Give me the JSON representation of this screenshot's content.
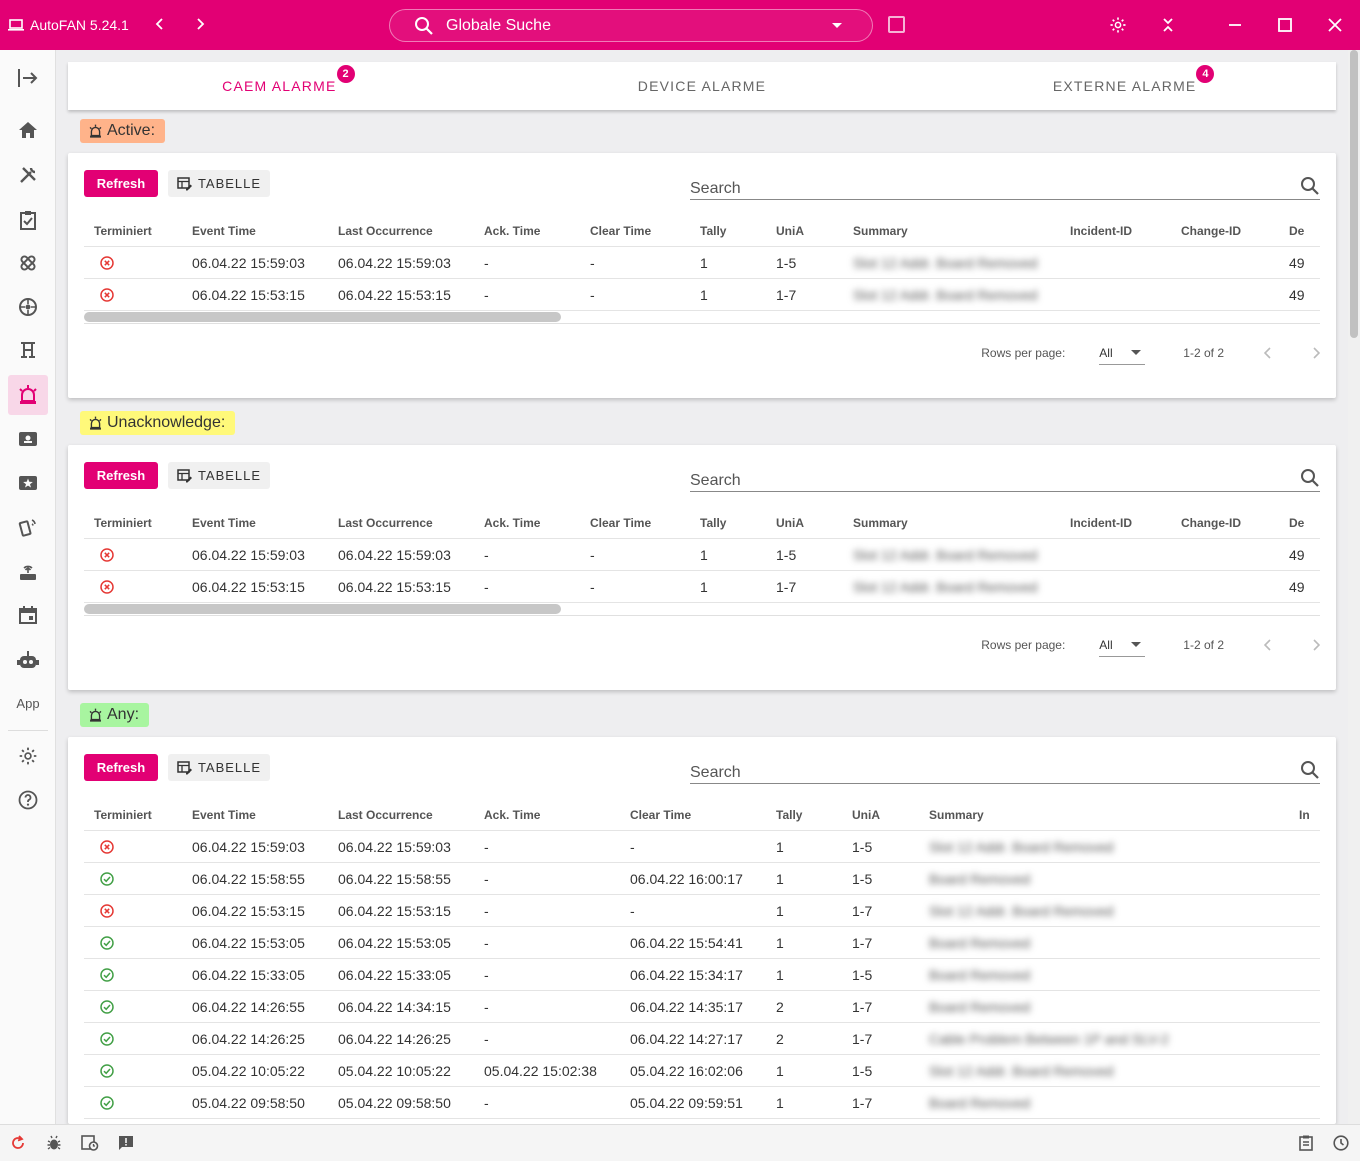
{
  "app": {
    "title": "AutoFAN 5.24.1"
  },
  "global_search": {
    "placeholder": "Globale Suche"
  },
  "tabs": [
    {
      "label": "CAEM ALARME",
      "badge": "2",
      "active": true
    },
    {
      "label": "DEVICE ALARME",
      "badge": "",
      "active": false
    },
    {
      "label": "EXTERNE ALARME",
      "badge": "4",
      "active": false
    }
  ],
  "sidebar": {
    "app_label": "App"
  },
  "sections": [
    {
      "label": "Active:",
      "color": "#ffb38a",
      "refresh_label": "Refresh",
      "tabelle_label": "TABELLE",
      "search_placeholder": "Search",
      "columns": [
        "Terminiert",
        "Event Time",
        "Last Occurrence",
        "Ack. Time",
        "Clear Time",
        "Tally",
        "UniA",
        "Summary",
        "Incident-ID",
        "Change-ID",
        "De"
      ],
      "rows": [
        {
          "status": "error",
          "event_time": "06.04.22 15:59:03",
          "last_occurrence": "06.04.22 15:59:03",
          "ack_time": "-",
          "clear_time": "-",
          "tally": "1",
          "unia": "1-5",
          "summary": "Slot 12 Addr. Board Removed",
          "incident_id": "",
          "change_id": "",
          "de": "49"
        },
        {
          "status": "error",
          "event_time": "06.04.22 15:53:15",
          "last_occurrence": "06.04.22 15:53:15",
          "ack_time": "-",
          "clear_time": "-",
          "tally": "1",
          "unia": "1-7",
          "summary": "Slot 12 Addr. Board Removed",
          "incident_id": "",
          "change_id": "",
          "de": "49"
        }
      ],
      "pagination": {
        "rows_per_page_label": "Rows per page:",
        "rows_per_page": "All",
        "range": "1-2 of 2"
      }
    },
    {
      "label": "Unacknowledge:",
      "color": "#fff97a",
      "refresh_label": "Refresh",
      "tabelle_label": "TABELLE",
      "search_placeholder": "Search",
      "columns": [
        "Terminiert",
        "Event Time",
        "Last Occurrence",
        "Ack. Time",
        "Clear Time",
        "Tally",
        "UniA",
        "Summary",
        "Incident-ID",
        "Change-ID",
        "De"
      ],
      "rows": [
        {
          "status": "error",
          "event_time": "06.04.22 15:59:03",
          "last_occurrence": "06.04.22 15:59:03",
          "ack_time": "-",
          "clear_time": "-",
          "tally": "1",
          "unia": "1-5",
          "summary": "Slot 12 Addr. Board Removed",
          "incident_id": "",
          "change_id": "",
          "de": "49"
        },
        {
          "status": "error",
          "event_time": "06.04.22 15:53:15",
          "last_occurrence": "06.04.22 15:53:15",
          "ack_time": "-",
          "clear_time": "-",
          "tally": "1",
          "unia": "1-7",
          "summary": "Slot 12 Addr. Board Removed",
          "incident_id": "",
          "change_id": "",
          "de": "49"
        }
      ],
      "pagination": {
        "rows_per_page_label": "Rows per page:",
        "rows_per_page": "All",
        "range": "1-2 of 2"
      }
    },
    {
      "label": "Any:",
      "color": "#a8f5a0",
      "refresh_label": "Refresh",
      "tabelle_label": "TABELLE",
      "search_placeholder": "Search",
      "columns": [
        "Terminiert",
        "Event Time",
        "Last Occurrence",
        "Ack. Time",
        "Clear Time",
        "Tally",
        "UniA",
        "Summary",
        "In"
      ],
      "rows": [
        {
          "status": "error",
          "event_time": "06.04.22 15:59:03",
          "last_occurrence": "06.04.22 15:59:03",
          "ack_time": "-",
          "clear_time": "-",
          "tally": "1",
          "unia": "1-5",
          "summary": "Slot 12 Addr. Board Removed"
        },
        {
          "status": "ok",
          "event_time": "06.04.22 15:58:55",
          "last_occurrence": "06.04.22 15:58:55",
          "ack_time": "-",
          "clear_time": "06.04.22 16:00:17",
          "tally": "1",
          "unia": "1-5",
          "summary": "Board Removed"
        },
        {
          "status": "error",
          "event_time": "06.04.22 15:53:15",
          "last_occurrence": "06.04.22 15:53:15",
          "ack_time": "-",
          "clear_time": "-",
          "tally": "1",
          "unia": "1-7",
          "summary": "Slot 12 Addr. Board Removed"
        },
        {
          "status": "ok",
          "event_time": "06.04.22 15:53:05",
          "last_occurrence": "06.04.22 15:53:05",
          "ack_time": "-",
          "clear_time": "06.04.22 15:54:41",
          "tally": "1",
          "unia": "1-7",
          "summary": "Board Removed"
        },
        {
          "status": "ok",
          "event_time": "06.04.22 15:33:05",
          "last_occurrence": "06.04.22 15:33:05",
          "ack_time": "-",
          "clear_time": "06.04.22 15:34:17",
          "tally": "1",
          "unia": "1-5",
          "summary": "Board Removed"
        },
        {
          "status": "ok",
          "event_time": "06.04.22 14:26:55",
          "last_occurrence": "06.04.22 14:34:15",
          "ack_time": "-",
          "clear_time": "06.04.22 14:35:17",
          "tally": "2",
          "unia": "1-7",
          "summary": "Board Removed"
        },
        {
          "status": "ok",
          "event_time": "06.04.22 14:26:25",
          "last_occurrence": "06.04.22 14:26:25",
          "ack_time": "-",
          "clear_time": "06.04.22 14:27:17",
          "tally": "2",
          "unia": "1-7",
          "summary": "Cable Problem Between 1P and SLV-2"
        },
        {
          "status": "ok",
          "event_time": "05.04.22 10:05:22",
          "last_occurrence": "05.04.22 10:05:22",
          "ack_time": "05.04.22 15:02:38",
          "clear_time": "05.04.22 16:02:06",
          "tally": "1",
          "unia": "1-5",
          "summary": "Slot 12 Addr. Board Removed"
        },
        {
          "status": "ok",
          "event_time": "05.04.22 09:58:50",
          "last_occurrence": "05.04.22 09:58:50",
          "ack_time": "-",
          "clear_time": "05.04.22 09:59:51",
          "tally": "1",
          "unia": "1-7",
          "summary": "Board Removed"
        }
      ]
    }
  ],
  "colors": {
    "brand": "#e20074",
    "error": "#e53935",
    "ok": "#43a047"
  }
}
